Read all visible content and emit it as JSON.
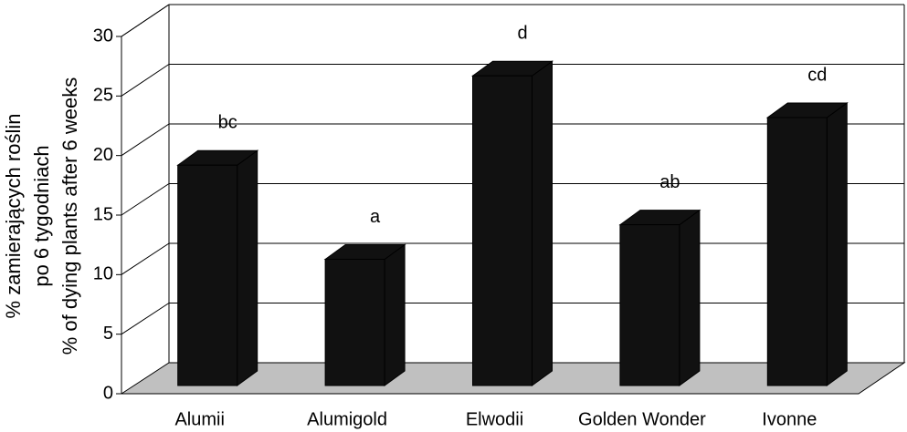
{
  "chart_data": {
    "type": "bar3d",
    "y_label": [
      "% zamierających roślin",
      "po 6 tygodniach",
      "% of dying plants after 6 weeks"
    ],
    "categories": [
      "Alumii",
      "Alumigold",
      "Elwodii",
      "Golden Wonder",
      "Ivonne"
    ],
    "values": [
      18.5,
      10.6,
      26,
      13.5,
      22.5
    ],
    "letters": [
      "bc",
      "a",
      "d",
      "ab",
      "cd"
    ],
    "color": "#111111",
    "ylim": [
      0,
      30
    ],
    "yticks": [
      0,
      5,
      10,
      15,
      20,
      25,
      30
    ],
    "grid": true
  }
}
